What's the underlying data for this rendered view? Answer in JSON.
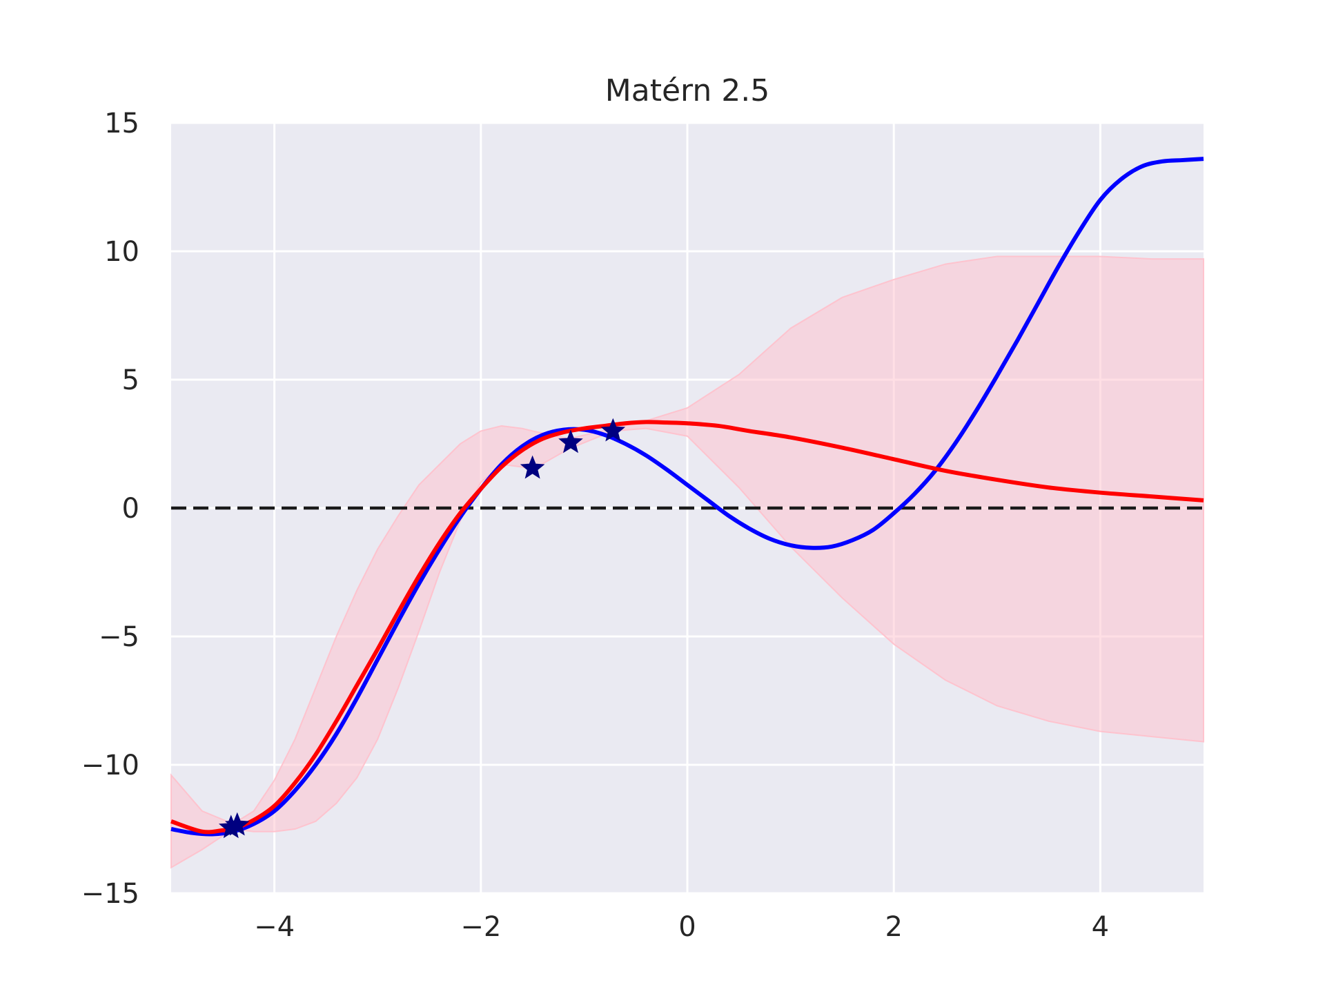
{
  "chart_data": {
    "type": "line",
    "title": "Matérn 2.5",
    "xlabel": "",
    "ylabel": "",
    "xlim": [
      -5,
      5
    ],
    "ylim": [
      -15,
      15
    ],
    "xticks": [
      -4,
      -2,
      0,
      2,
      4
    ],
    "xtick_labels": [
      "−4",
      "−2",
      "0",
      "2",
      "4"
    ],
    "yticks": [
      -15,
      -10,
      -5,
      0,
      5,
      10,
      15
    ],
    "ytick_labels": [
      "−15",
      "−10",
      "−5",
      "0",
      "5",
      "10",
      "15"
    ],
    "grid": true,
    "legend": "none",
    "colors": {
      "background": "#eaeaf2",
      "grid": "#ffffff",
      "true_function": "#0000ff",
      "gp_mean": "#ff0000",
      "confidence_fill": "#ffc0cb",
      "observations": "#000080",
      "zero_line": "#1a1a1a"
    },
    "true_function": {
      "x": [
        -5,
        -4.8,
        -4.6,
        -4.4,
        -4.2,
        -4.0,
        -3.8,
        -3.6,
        -3.4,
        -3.2,
        -3.0,
        -2.8,
        -2.6,
        -2.4,
        -2.2,
        -2.0,
        -1.8,
        -1.6,
        -1.4,
        -1.2,
        -1.0,
        -0.8,
        -0.6,
        -0.4,
        -0.2,
        0.0,
        0.2,
        0.4,
        0.6,
        0.8,
        1.0,
        1.2,
        1.4,
        1.6,
        1.8,
        2.0,
        2.2,
        2.4,
        2.6,
        2.8,
        3.0,
        3.2,
        3.4,
        3.6,
        3.8,
        4.0,
        4.2,
        4.4,
        4.6,
        4.8,
        5.0
      ],
      "y": [
        -12.5,
        -12.65,
        -12.7,
        -12.6,
        -12.3,
        -11.8,
        -11.0,
        -10.0,
        -8.8,
        -7.4,
        -5.9,
        -4.4,
        -2.95,
        -1.6,
        -0.35,
        0.75,
        1.7,
        2.4,
        2.85,
        3.05,
        3.05,
        2.85,
        2.5,
        2.05,
        1.5,
        0.9,
        0.3,
        -0.3,
        -0.8,
        -1.2,
        -1.45,
        -1.55,
        -1.5,
        -1.25,
        -0.85,
        -0.2,
        0.55,
        1.45,
        2.55,
        3.8,
        5.15,
        6.55,
        8.0,
        9.45,
        10.8,
        12.0,
        12.8,
        13.3,
        13.5,
        13.55,
        13.6
      ]
    },
    "gp_mean": {
      "x": [
        -5,
        -4.7,
        -4.5,
        -4.4,
        -4.2,
        -4.0,
        -3.8,
        -3.6,
        -3.4,
        -3.2,
        -3.0,
        -2.8,
        -2.6,
        -2.4,
        -2.2,
        -2.0,
        -1.8,
        -1.6,
        -1.4,
        -1.2,
        -1.0,
        -0.8,
        -0.6,
        -0.4,
        -0.2,
        0.0,
        0.3,
        0.6,
        1.0,
        1.5,
        2.0,
        2.5,
        3.0,
        3.5,
        4.0,
        4.5,
        5.0
      ],
      "y": [
        -12.2,
        -12.6,
        -12.55,
        -12.5,
        -12.15,
        -11.6,
        -10.7,
        -9.6,
        -8.3,
        -6.9,
        -5.5,
        -4.05,
        -2.65,
        -1.35,
        -0.2,
        0.75,
        1.6,
        2.25,
        2.7,
        2.95,
        3.1,
        3.2,
        3.3,
        3.35,
        3.33,
        3.3,
        3.2,
        3.0,
        2.75,
        2.35,
        1.9,
        1.45,
        1.1,
        0.8,
        0.6,
        0.45,
        0.3
      ]
    },
    "confidence_band": {
      "x": [
        -5,
        -4.7,
        -4.4,
        -4.2,
        -4.0,
        -3.8,
        -3.6,
        -3.4,
        -3.2,
        -3.0,
        -2.8,
        -2.6,
        -2.4,
        -2.2,
        -2.0,
        -1.8,
        -1.6,
        -1.5,
        -1.15,
        -0.72,
        -0.4,
        0.0,
        0.5,
        1.0,
        1.5,
        2.0,
        2.5,
        3.0,
        3.5,
        4.0,
        4.5,
        5.0
      ],
      "upper": [
        -10.4,
        -11.8,
        -12.3,
        -11.8,
        -10.6,
        -9.0,
        -7.0,
        -5.0,
        -3.2,
        -1.6,
        -0.3,
        0.9,
        1.7,
        2.5,
        3.0,
        3.2,
        3.1,
        3.0,
        2.7,
        3.1,
        3.4,
        3.9,
        5.2,
        7.0,
        8.2,
        8.9,
        9.5,
        9.8,
        9.8,
        9.8,
        9.7,
        9.7
      ],
      "lower": [
        -14.0,
        -13.3,
        -12.5,
        -12.6,
        -12.6,
        -12.5,
        -12.2,
        -11.5,
        -10.5,
        -9.0,
        -7.0,
        -4.8,
        -2.5,
        -0.5,
        1.0,
        1.7,
        1.6,
        1.5,
        2.3,
        3.0,
        3.1,
        2.8,
        0.8,
        -1.5,
        -3.5,
        -5.3,
        -6.7,
        -7.7,
        -8.3,
        -8.7,
        -8.9,
        -9.1
      ]
    },
    "observations": {
      "x": [
        -4.42,
        -4.36,
        -1.5,
        -1.13,
        -0.72
      ],
      "y": [
        -12.45,
        -12.35,
        1.55,
        2.55,
        3.0
      ]
    },
    "reference_line": {
      "y": 0,
      "style": "dashed"
    }
  }
}
